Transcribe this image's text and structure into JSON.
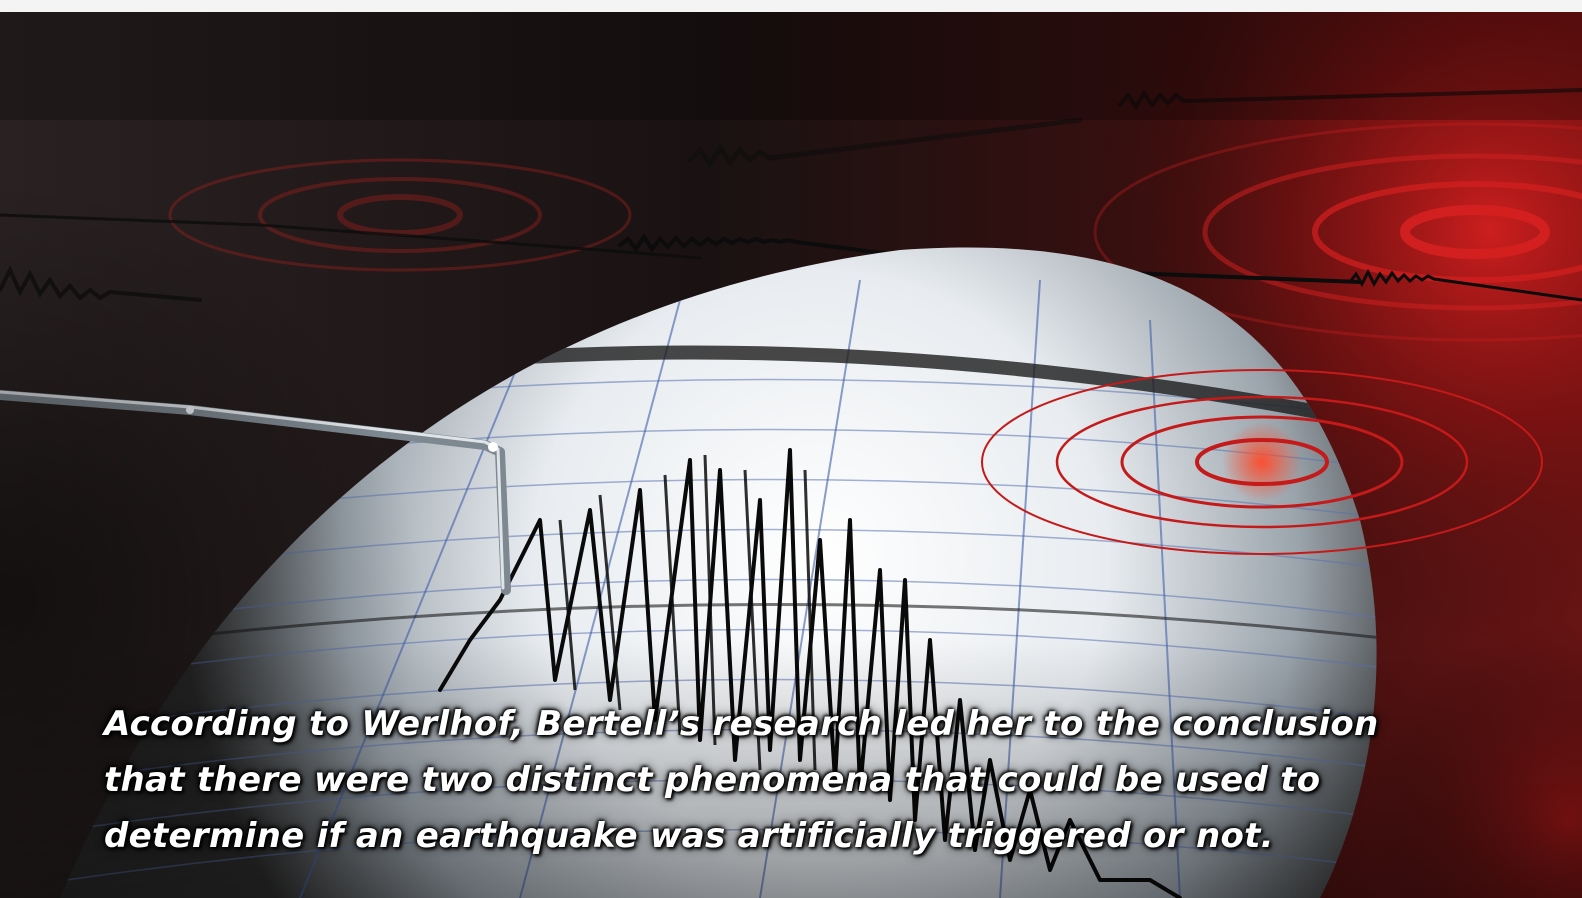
{
  "image": {
    "subject": "seismograph drum",
    "caption_lines": [
      "According to Werlhof, Bertell’s research led her to the conclusion",
      "that there were two distinct phenomena that could be used to",
      "determine if an earthquake was artificially triggered or not."
    ]
  },
  "colors": {
    "accent_red": "#c41a1a",
    "background_dark": "#1a0d0d",
    "paper": "#eef1f4",
    "grid": "#3f5fa8"
  }
}
